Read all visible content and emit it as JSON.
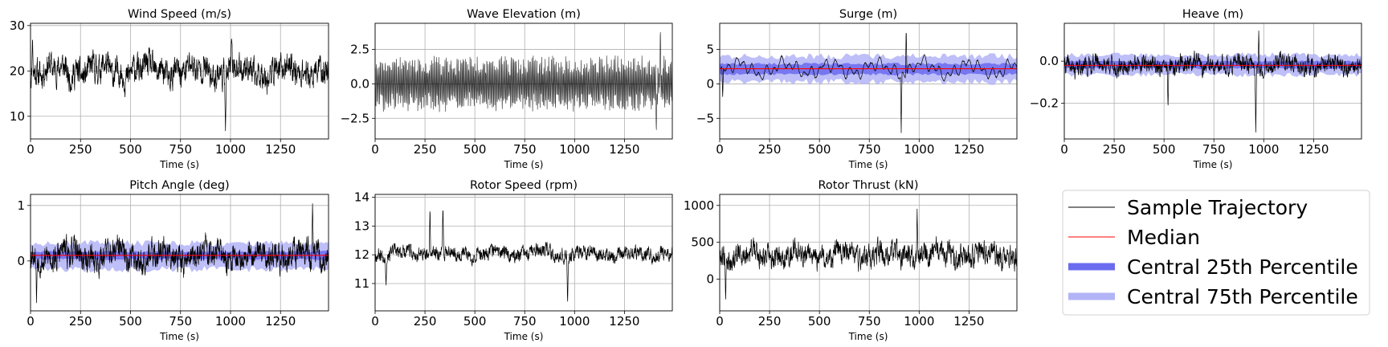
{
  "figure": {
    "legend": {
      "placement": "bottom-right panel",
      "entries": [
        {
          "label": "Sample Trajectory",
          "color": "#000000",
          "style": "thin-line"
        },
        {
          "label": "Median",
          "color": "#ff0000",
          "style": "thin-line"
        },
        {
          "label": "Central 25th Percentile",
          "color": "#6b6bef",
          "style": "thick-band"
        },
        {
          "label": "Central 75th Percentile",
          "color": "#b3b3f7",
          "style": "thick-band"
        }
      ]
    }
  },
  "chart_data": [
    {
      "type": "line",
      "title": "Wind Speed (m/s)",
      "xlabel": "Time (s)",
      "ylabel": "",
      "xlim": [
        0,
        1490
      ],
      "ylim": [
        5,
        30.5
      ],
      "xticks": [
        0,
        250,
        500,
        750,
        1000,
        1250
      ],
      "yticks": [
        10,
        20,
        30
      ],
      "grid": true,
      "series": [
        {
          "role": "sample",
          "mean": 20,
          "amp": 4.2,
          "seed": 11,
          "events": [
            {
              "x": 975,
              "y": 6.5
            },
            {
              "x": 1005,
              "y": 27.5
            },
            {
              "x": 10,
              "y": 28
            }
          ]
        }
      ],
      "median": null,
      "bands": []
    },
    {
      "type": "line",
      "title": "Wave Elevation (m)",
      "xlabel": "Time (s)",
      "ylabel": "",
      "xlim": [
        0,
        1490
      ],
      "ylim": [
        -4.0,
        4.4
      ],
      "xticks": [
        0,
        250,
        500,
        750,
        1000,
        1250
      ],
      "yticks": [
        -2.5,
        0.0,
        2.5
      ],
      "ytick_labels": [
        "−2.5",
        "0.0",
        "2.5"
      ],
      "grid": true,
      "series": [
        {
          "role": "sample",
          "mean": 0,
          "amp": 1.6,
          "seed": 23,
          "oscillating": true,
          "events": [
            {
              "x": 1430,
              "y": 4.0
            },
            {
              "x": 1410,
              "y": -3.5
            }
          ]
        }
      ],
      "median": null,
      "bands": []
    },
    {
      "type": "line",
      "title": "Surge (m)",
      "xlabel": "Time (s)",
      "ylabel": "",
      "xlim": [
        0,
        1490
      ],
      "ylim": [
        -8,
        8.8
      ],
      "xticks": [
        0,
        250,
        500,
        750,
        1000,
        1250
      ],
      "yticks": [
        -5,
        0,
        5
      ],
      "ytick_labels": [
        "−5",
        "0",
        "5"
      ],
      "grid": true,
      "series": [
        {
          "role": "sample",
          "mean": 2.2,
          "amp": 1.6,
          "seed": 37,
          "smooth": true,
          "events": [
            {
              "x": 910,
              "y": -7.2
            },
            {
              "x": 935,
              "y": 8.3
            },
            {
              "x": 15,
              "y": -2.0
            }
          ]
        }
      ],
      "median": 2.2,
      "bands": [
        {
          "name": "Central 75th Percentile",
          "low": 0.3,
          "high": 4.0
        },
        {
          "name": "Central 25th Percentile",
          "low": 1.4,
          "high": 2.9
        }
      ]
    },
    {
      "type": "line",
      "title": "Heave (m)",
      "xlabel": "Time (s)",
      "ylabel": "",
      "xlim": [
        0,
        1490
      ],
      "ylim": [
        -0.37,
        0.18
      ],
      "xticks": [
        0,
        250,
        500,
        750,
        1000,
        1250
      ],
      "yticks": [
        -0.2,
        0.0
      ],
      "ytick_labels": [
        "−0.2",
        "0.0"
      ],
      "grid": true,
      "series": [
        {
          "role": "sample",
          "mean": -0.02,
          "amp": 0.055,
          "seed": 41,
          "events": [
            {
              "x": 960,
              "y": -0.34
            },
            {
              "x": 975,
              "y": 0.15
            },
            {
              "x": 520,
              "y": -0.23
            }
          ]
        }
      ],
      "median": -0.02,
      "bands": [
        {
          "name": "Central 75th Percentile",
          "low": -0.065,
          "high": 0.03
        },
        {
          "name": "Central 25th Percentile",
          "low": -0.035,
          "high": 0.0
        }
      ]
    },
    {
      "type": "line",
      "title": "Pitch Angle (deg)",
      "xlabel": "Time (s)",
      "ylabel": "",
      "xlim": [
        0,
        1490
      ],
      "ylim": [
        -0.9,
        1.2
      ],
      "xticks": [
        0,
        250,
        500,
        750,
        1000,
        1250
      ],
      "yticks": [
        0,
        1
      ],
      "grid": true,
      "series": [
        {
          "role": "sample",
          "mean": 0.1,
          "amp": 0.33,
          "seed": 53,
          "events": [
            {
              "x": 1410,
              "y": 1.08
            },
            {
              "x": 30,
              "y": -0.8
            }
          ]
        }
      ],
      "median": 0.1,
      "bands": [
        {
          "name": "Central 75th Percentile",
          "low": -0.15,
          "high": 0.32
        },
        {
          "name": "Central 25th Percentile",
          "low": 0.03,
          "high": 0.17
        }
      ]
    },
    {
      "type": "line",
      "title": "Rotor Speed (rpm)",
      "xlabel": "Time (s)",
      "ylabel": "",
      "xlim": [
        0,
        1490
      ],
      "ylim": [
        10.05,
        14.1
      ],
      "xticks": [
        0,
        250,
        500,
        750,
        1000,
        1250
      ],
      "yticks": [
        11,
        12,
        13,
        14
      ],
      "grid": true,
      "series": [
        {
          "role": "sample",
          "mean": 12.05,
          "amp": 0.32,
          "seed": 67,
          "events": [
            {
              "x": 965,
              "y": 10.25
            },
            {
              "x": 340,
              "y": 13.75
            },
            {
              "x": 55,
              "y": 10.85
            },
            {
              "x": 275,
              "y": 13.7
            }
          ]
        }
      ],
      "median": null,
      "bands": []
    },
    {
      "type": "line",
      "title": "Rotor Thrust (kN)",
      "xlabel": "Time (s)",
      "ylabel": "",
      "xlim": [
        0,
        1490
      ],
      "ylim": [
        -430,
        1150
      ],
      "xticks": [
        0,
        250,
        500,
        750,
        1000,
        1250
      ],
      "yticks": [
        0,
        500,
        1000
      ],
      "grid": true,
      "series": [
        {
          "role": "sample",
          "mean": 330,
          "amp": 210,
          "seed": 79,
          "events": [
            {
              "x": 990,
              "y": 1000
            },
            {
              "x": 30,
              "y": -300
            }
          ]
        }
      ],
      "median": null,
      "bands": []
    }
  ]
}
